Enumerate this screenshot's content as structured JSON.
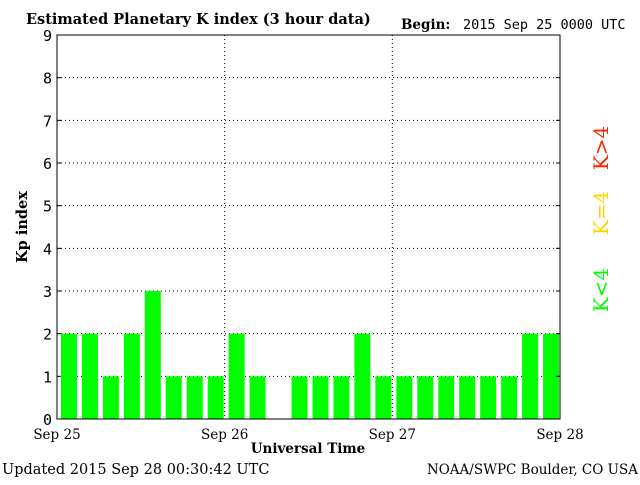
{
  "chart_data": {
    "type": "bar",
    "title": "Estimated Planetary K index (3 hour data)",
    "begin_label": "Begin:",
    "begin_value": "2015 Sep 25 0000 UTC",
    "xlabel": "Universal Time",
    "ylabel": "Kp index",
    "ylim": [
      0,
      9
    ],
    "y_ticks": [
      "0",
      "1",
      "2",
      "3",
      "4",
      "5",
      "6",
      "7",
      "8",
      "9"
    ],
    "x_ticks": [
      "Sep 25",
      "Sep 26",
      "Sep 27",
      "Sep 28"
    ],
    "grid": true,
    "bar_color": "#00ff00",
    "values": [
      2,
      2,
      1,
      2,
      3,
      1,
      1,
      1,
      2,
      1,
      0,
      1,
      1,
      1,
      2,
      1,
      1,
      1,
      1,
      1,
      1,
      1,
      2,
      2
    ],
    "legend": [
      {
        "label": "K>4",
        "color": "#ff2000"
      },
      {
        "label": "K=4",
        "color": "#ffd700"
      },
      {
        "label": "K<4",
        "color": "#00ff00"
      }
    ]
  },
  "footer": {
    "updated": "Updated 2015 Sep 28 00:30:42 UTC",
    "source": "NOAA/SWPC Boulder, CO USA"
  }
}
